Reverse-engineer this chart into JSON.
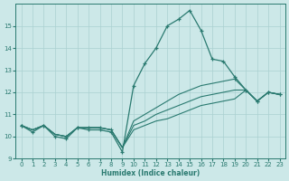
{
  "xlabel": "Humidex (Indice chaleur)",
  "xlim": [
    -0.5,
    23.5
  ],
  "ylim": [
    9,
    16
  ],
  "yticks": [
    9,
    10,
    11,
    12,
    13,
    14,
    15
  ],
  "xticks": [
    0,
    1,
    2,
    3,
    4,
    5,
    6,
    7,
    8,
    9,
    10,
    11,
    12,
    13,
    14,
    15,
    16,
    17,
    18,
    19,
    20,
    21,
    22,
    23
  ],
  "bg_color": "#cce8e8",
  "line_color": "#2a7a70",
  "grid_color": "#aad0d0",
  "main_y": [
    10.5,
    10.2,
    10.5,
    10.0,
    9.9,
    10.4,
    10.3,
    10.3,
    10.2,
    9.3,
    12.3,
    13.3,
    14.0,
    15.0,
    15.3,
    15.7,
    14.8,
    13.5,
    13.4,
    12.7,
    12.1,
    11.6,
    12.0,
    11.9
  ],
  "line2_y": [
    10.5,
    10.3,
    10.5,
    10.1,
    10.0,
    10.4,
    10.4,
    10.4,
    10.3,
    9.5,
    10.7,
    11.0,
    11.3,
    11.6,
    11.9,
    12.1,
    12.3,
    12.4,
    12.5,
    12.6,
    12.1,
    11.6,
    12.0,
    11.9
  ],
  "line3_y": [
    10.5,
    10.3,
    10.5,
    10.1,
    10.0,
    10.4,
    10.4,
    10.4,
    10.3,
    9.5,
    10.5,
    10.7,
    11.0,
    11.2,
    11.4,
    11.6,
    11.8,
    11.9,
    12.0,
    12.1,
    12.1,
    11.6,
    12.0,
    11.9
  ],
  "line4_y": [
    10.5,
    10.3,
    10.5,
    10.1,
    10.0,
    10.4,
    10.4,
    10.4,
    10.3,
    9.5,
    10.3,
    10.5,
    10.7,
    10.8,
    11.0,
    11.2,
    11.4,
    11.5,
    11.6,
    11.7,
    12.1,
    11.6,
    12.0,
    11.9
  ]
}
